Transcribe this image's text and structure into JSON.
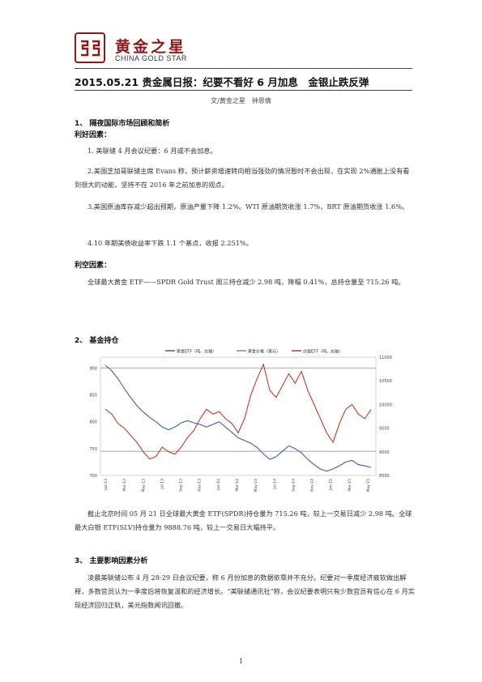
{
  "logo": {
    "name_cn": "黄金之星",
    "name_en": "CHINA GOLD STAR"
  },
  "title": "2015.05.21 贵金属日报：纪要不看好 6 月加息　金银止跌反弹",
  "byline": "文/黄金之星　钟思倩",
  "section1": {
    "heading": "1、 隔夜国际市场回顾和简析",
    "bullish_label": "利好因素：",
    "bullish": [
      "1.  美联储 4 月会议纪要：6 月或不会加息。",
      "2.美国芝加哥联储主席 Evans 称，预计薪资增速转向相当强劲的情况暂时不会出现，在实现 2%通胀上没有看到很大的动能，坚持不在 2016 年之前加息的观点。",
      "3.美国原油库存减少超出预期，原油产量下降 1.2%。WTI 原油期货收涨 1.7%，BRT 原油期货收涨 1.6%。",
      "4.10 年期美债收益率下跌 1.1 个基点，收报 2.251%。"
    ],
    "bearish_label": "利空因素：",
    "bearish": "全球最大黄金 ETF——SPDR Gold Trust 周三持仓减少 2.98 吨，降幅 0.41%，总持仓量至 715.26 吨。"
  },
  "section2": {
    "heading": "2、 基金持仓",
    "caption": "截止北京时间 05 月 21 日全球最大黄金 ETF(SPDR)持仓量为 715.26 吨，较上一交易日减少 2.98 吨。全球最大白银 ETF(SLV)持仓量为 9888.76 吨，较上一交易日大幅持平。"
  },
  "section3": {
    "heading": "3、 主要影响因素分析",
    "body": "凌晨美联储公布 4 月 28-29 日会议纪要，称 6 月份加息的数据依靠并不充分。纪要对一季度经济疲软做出解释，多数官员认为一季度后将恢复温和的经济增长。“美联储通讯社”称，会议纪要表明只有少数官员有信心在 6 月实现经济回归正轨，美元指数闻讯回撤。"
  },
  "page_number": "1",
  "chart_data": {
    "type": "line",
    "title": "",
    "legend": [
      "黄金ETF（吨，左轴）",
      "黄金价格（美元）",
      "白银ETF（吨，右轴）"
    ],
    "legend_position": "top",
    "left_axis": {
      "ticks": [
        "900",
        "850",
        "800",
        "750",
        "700"
      ],
      "range": [
        700,
        920
      ]
    },
    "right_axis": {
      "ticks": [
        "11000",
        "10500",
        "10000",
        "9500",
        "9000",
        "8500"
      ],
      "range": [
        8500,
        11000
      ]
    },
    "x_labels": [
      "Jan-13",
      "Mar-13",
      "May-13",
      "Jul-13",
      "Sep-13",
      "Nov-13",
      "Jan-14",
      "Mar-14",
      "May-14",
      "Jul-14",
      "Sep-14",
      "Nov-14",
      "Jan-15",
      "Mar-15",
      "May-15"
    ],
    "series": [
      {
        "name": "黄金ETF（吨，左轴）",
        "color": "#3a5fa8",
        "values": [
          905,
          895,
          880,
          862,
          845,
          830,
          818,
          808,
          800,
          790,
          785,
          790,
          798,
          802,
          798,
          795,
          790,
          795,
          800,
          790,
          780,
          770,
          765,
          760,
          752,
          740,
          730,
          735,
          745,
          755,
          750,
          742,
          730,
          720,
          712,
          708,
          712,
          718,
          725,
          728,
          720,
          718,
          715
        ]
      },
      {
        "name": "白银ETF（吨，右轴）",
        "color": "#c0392b",
        "values": [
          9900,
          9800,
          9600,
          9500,
          9350,
          9200,
          9000,
          8850,
          8900,
          9100,
          9000,
          8950,
          9100,
          9300,
          9450,
          9700,
          9900,
          9800,
          9850,
          9700,
          9600,
          9400,
          9700,
          10200,
          10550,
          10850,
          10300,
          10150,
          10400,
          10650,
          10450,
          10700,
          10300,
          10000,
          9700,
          9400,
          9200,
          9600,
          9900,
          10000,
          9800,
          9700,
          9890
        ]
      },
      {
        "name": "黄金价格（美元）",
        "color": "#8a8a8a",
        "values": [],
        "note": "horizontal reference lines"
      }
    ]
  }
}
